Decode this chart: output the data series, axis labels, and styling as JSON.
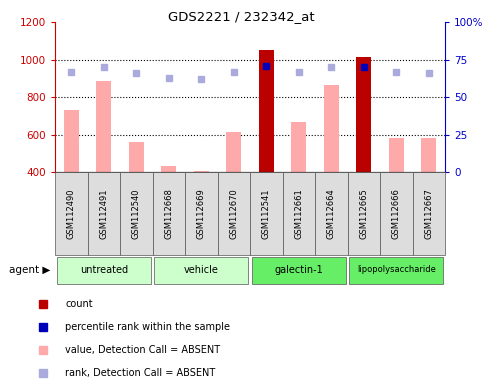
{
  "title": "GDS2221 / 232342_at",
  "samples": [
    "GSM112490",
    "GSM112491",
    "GSM112540",
    "GSM112668",
    "GSM112669",
    "GSM112670",
    "GSM112541",
    "GSM112661",
    "GSM112664",
    "GSM112665",
    "GSM112666",
    "GSM112667"
  ],
  "bar_values": [
    730,
    885,
    560,
    430,
    405,
    615,
    1050,
    665,
    865,
    1015,
    580,
    580
  ],
  "bar_is_present": [
    false,
    false,
    false,
    false,
    false,
    false,
    true,
    false,
    false,
    true,
    false,
    false
  ],
  "rank_values": [
    67,
    70,
    66,
    63,
    62,
    67,
    71,
    67,
    70,
    70,
    67,
    66
  ],
  "rank_is_present": [
    false,
    false,
    false,
    false,
    false,
    false,
    true,
    false,
    false,
    true,
    false,
    false
  ],
  "ylim_left": [
    400,
    1200
  ],
  "ylim_right": [
    0,
    100
  ],
  "yticks_left": [
    400,
    600,
    800,
    1000,
    1200
  ],
  "yticks_right": [
    0,
    25,
    50,
    75,
    100
  ],
  "bar_color_present": "#bb0000",
  "bar_color_absent": "#ffaaaa",
  "rank_color_present": "#0000bb",
  "rank_color_absent": "#aaaadd",
  "bg_color": "#ffffff",
  "left_axis_color": "#cc0000",
  "right_axis_color": "#0000cc",
  "group_info": [
    {
      "name": "untreated",
      "start": 0,
      "end": 2,
      "color": "#ccffcc"
    },
    {
      "name": "vehicle",
      "start": 3,
      "end": 5,
      "color": "#ccffcc"
    },
    {
      "name": "galectin-1",
      "start": 6,
      "end": 8,
      "color": "#66ee66"
    },
    {
      "name": "lipopolysaccharide",
      "start": 9,
      "end": 11,
      "color": "#66ee66"
    }
  ],
  "legend": [
    {
      "label": "count",
      "color": "#bb0000"
    },
    {
      "label": "percentile rank within the sample",
      "color": "#0000bb"
    },
    {
      "label": "value, Detection Call = ABSENT",
      "color": "#ffaaaa"
    },
    {
      "label": "rank, Detection Call = ABSENT",
      "color": "#aaaadd"
    }
  ],
  "agent_label": "agent ▶"
}
